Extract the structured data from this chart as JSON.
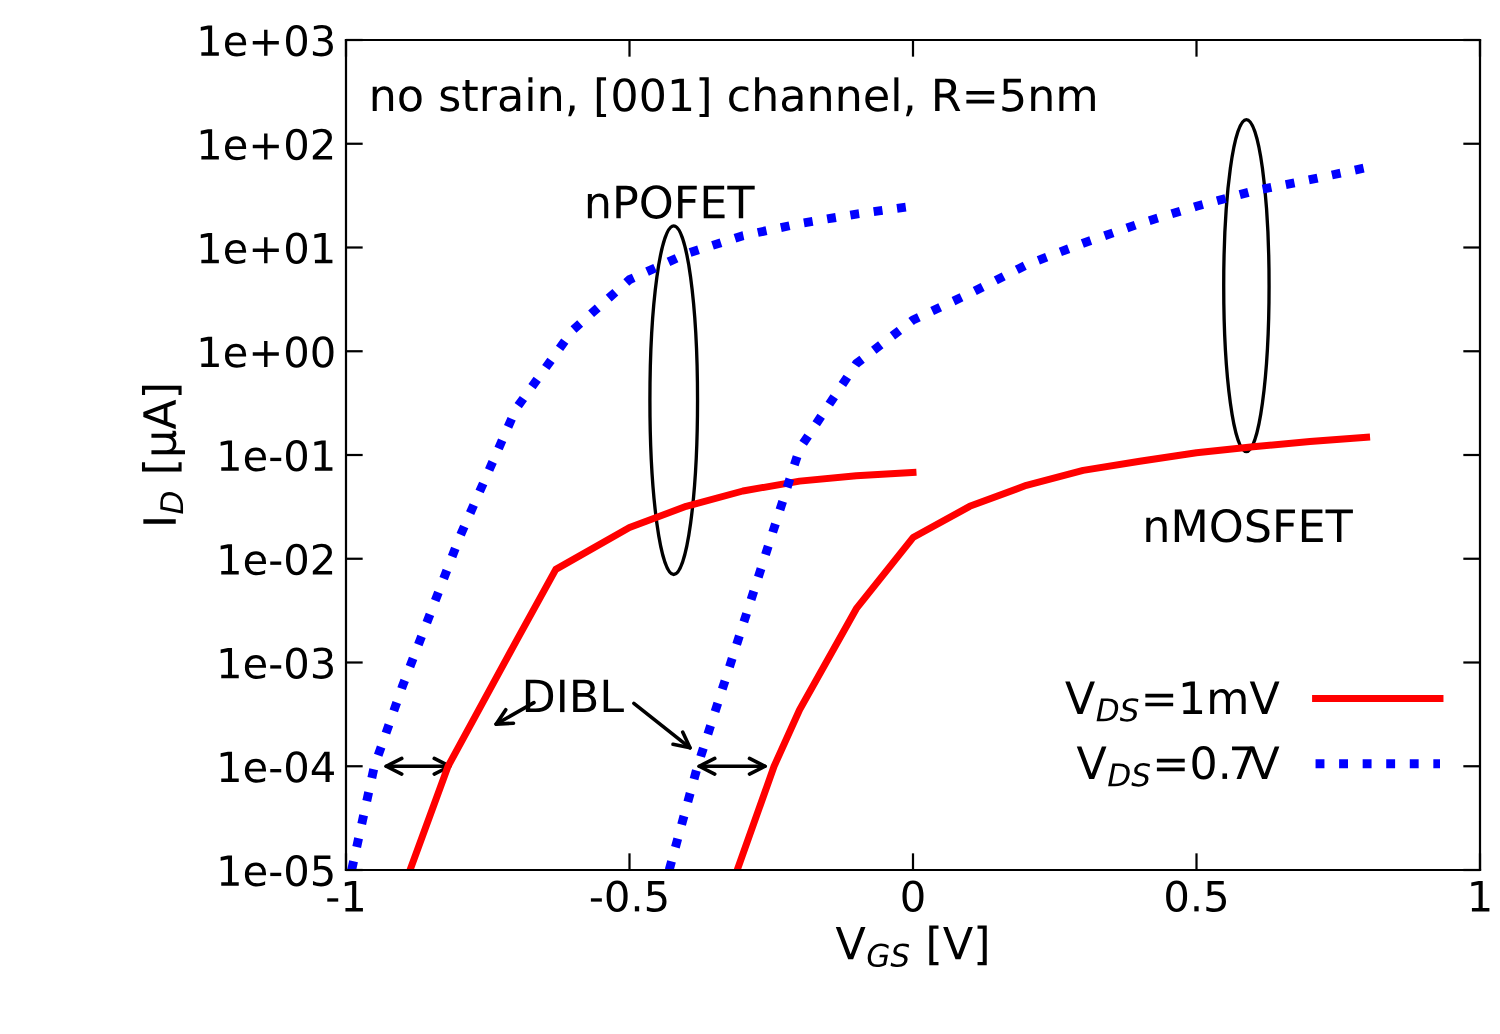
{
  "chart_data": {
    "type": "line",
    "xlabel": "V$_{GS}$ [V]",
    "ylabel": "I$_{D}$ [μA]",
    "log": "y",
    "xlim": [
      -1,
      1
    ],
    "xticks": [
      -1,
      -0.5,
      0,
      0.5,
      1
    ],
    "ylim": [
      1e-05,
      1000
    ],
    "yticks": [
      {
        "value": 1000,
        "label": "1e+03"
      },
      {
        "value": 100,
        "label": "1e+02"
      },
      {
        "value": 10,
        "label": "1e+01"
      },
      {
        "value": 1,
        "label": "1e+00"
      },
      {
        "value": 0.1,
        "label": "1e-01"
      },
      {
        "value": 0.01,
        "label": "1e-02"
      },
      {
        "value": 0.001,
        "label": "1e-03"
      },
      {
        "value": 0.0001,
        "label": "1e-04"
      },
      {
        "value": 1e-05,
        "label": "1e-05"
      }
    ],
    "grid": false,
    "legend": "bottom right",
    "series": [
      {
        "name": "V$_{DS}$=1mV",
        "color": "#ff0000",
        "line_style": "solid",
        "x": [
          -0.887,
          -0.82,
          -0.7,
          -0.63,
          -0.5,
          -0.4,
          -0.3,
          -0.2,
          -0.1,
          0
        ],
        "values": [
          1e-05,
          0.0001,
          0.0016,
          0.0079,
          0.02,
          0.032,
          0.045,
          0.056,
          0.063,
          0.068
        ]
      },
      {
        "name": "V$_{DS}$=0.7V",
        "color": "#0000ff",
        "line_style": "dotted",
        "x": [
          -0.99,
          -0.95,
          -0.9,
          -0.8,
          -0.7,
          -0.6,
          -0.5,
          -0.4,
          -0.3,
          -0.2,
          -0.1,
          0
        ],
        "values": [
          1e-05,
          0.0001,
          0.0006,
          0.016,
          0.28,
          1.6,
          4.9,
          8.7,
          13,
          17,
          21,
          25
        ]
      },
      {
        "color": "#ff0000",
        "line_style": "solid",
        "x": [
          -0.31,
          -0.245,
          -0.2,
          -0.1,
          0,
          0.1,
          0.2,
          0.3,
          0.4,
          0.5,
          0.6,
          0.7,
          0.8
        ],
        "values": [
          1e-05,
          0.0001,
          0.00035,
          0.0033,
          0.016,
          0.032,
          0.051,
          0.071,
          0.087,
          0.105,
          0.12,
          0.135,
          0.148
        ]
      },
      {
        "color": "#0000ff",
        "line_style": "dotted",
        "x": [
          -0.43,
          -0.38,
          -0.3,
          -0.2,
          -0.1,
          0,
          0.1,
          0.2,
          0.3,
          0.4,
          0.5,
          0.6,
          0.7,
          0.8
        ],
        "values": [
          1e-05,
          0.0001,
          0.0023,
          0.115,
          0.76,
          2.0,
          3.6,
          6.8,
          11,
          17,
          25,
          35,
          45,
          59
        ]
      }
    ],
    "annotations": [
      "no strain, [001] channel, R=5nm",
      "nPOFET",
      "nMOSFET",
      "DIBL"
    ]
  }
}
